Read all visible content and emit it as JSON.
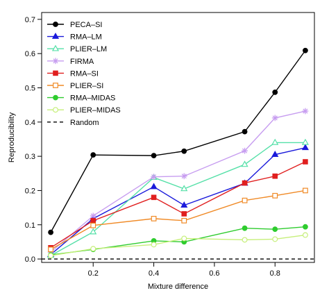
{
  "chart_data": {
    "type": "line",
    "xlabel": "Mixture difference",
    "ylabel": "Reproducibility",
    "xlim": [
      0.03,
      0.93
    ],
    "ylim": [
      -0.01,
      0.72
    ],
    "x_ticks": [
      0.2,
      0.4,
      0.6,
      0.8
    ],
    "y_ticks": [
      0.0,
      0.1,
      0.2,
      0.3,
      0.4,
      0.5,
      0.6,
      0.7
    ],
    "x_tick_labels": [
      "0.2",
      "0.4",
      "0.6",
      "0.8"
    ],
    "y_tick_labels": [
      "0.0",
      "0.1",
      "0.2",
      "0.3",
      "0.4",
      "0.5",
      "0.6",
      "0.7"
    ],
    "x": [
      0.06,
      0.2,
      0.4,
      0.5,
      0.7,
      0.8,
      0.9
    ],
    "legend_position": "top-left",
    "grid": false,
    "series": [
      {
        "name": "PECA–SI",
        "color": "#000000",
        "marker": "filled-circle",
        "values": [
          0.078,
          0.304,
          0.302,
          0.315,
          0.372,
          0.487,
          0.609
        ]
      },
      {
        "name": "RMA–LM",
        "color": "#1a1adb",
        "marker": "filled-triangle",
        "values": [
          0.013,
          0.118,
          0.211,
          0.157,
          0.221,
          0.305,
          0.325
        ]
      },
      {
        "name": "PLIER–LM",
        "color": "#55e0a8",
        "marker": "open-triangle",
        "values": [
          0.01,
          0.079,
          0.238,
          0.205,
          0.276,
          0.34,
          0.34
        ]
      },
      {
        "name": "FIRMA",
        "color": "#c79df0",
        "marker": "star",
        "values": [
          0.02,
          0.126,
          0.24,
          0.242,
          0.316,
          0.412,
          0.432
        ]
      },
      {
        "name": "RMA–SI",
        "color": "#e01f1f",
        "marker": "filled-square",
        "values": [
          0.033,
          0.112,
          0.18,
          0.132,
          0.222,
          0.242,
          0.284
        ]
      },
      {
        "name": "PLIER–SI",
        "color": "#f08a26",
        "marker": "open-square",
        "values": [
          0.028,
          0.098,
          0.118,
          0.112,
          0.171,
          0.185,
          0.2
        ]
      },
      {
        "name": "RMA–MIDAS",
        "color": "#2ecc2e",
        "marker": "filled-circle",
        "values": [
          0.012,
          0.028,
          0.053,
          0.05,
          0.09,
          0.087,
          0.094
        ]
      },
      {
        "name": "PLIER–MIDAS",
        "color": "#c6ef7a",
        "marker": "open-circle",
        "values": [
          0.01,
          0.03,
          0.042,
          0.06,
          0.056,
          0.058,
          0.07
        ]
      },
      {
        "name": "Random",
        "color": "#000000",
        "marker": "none",
        "style": "dashed",
        "constant": 0.0
      }
    ]
  }
}
